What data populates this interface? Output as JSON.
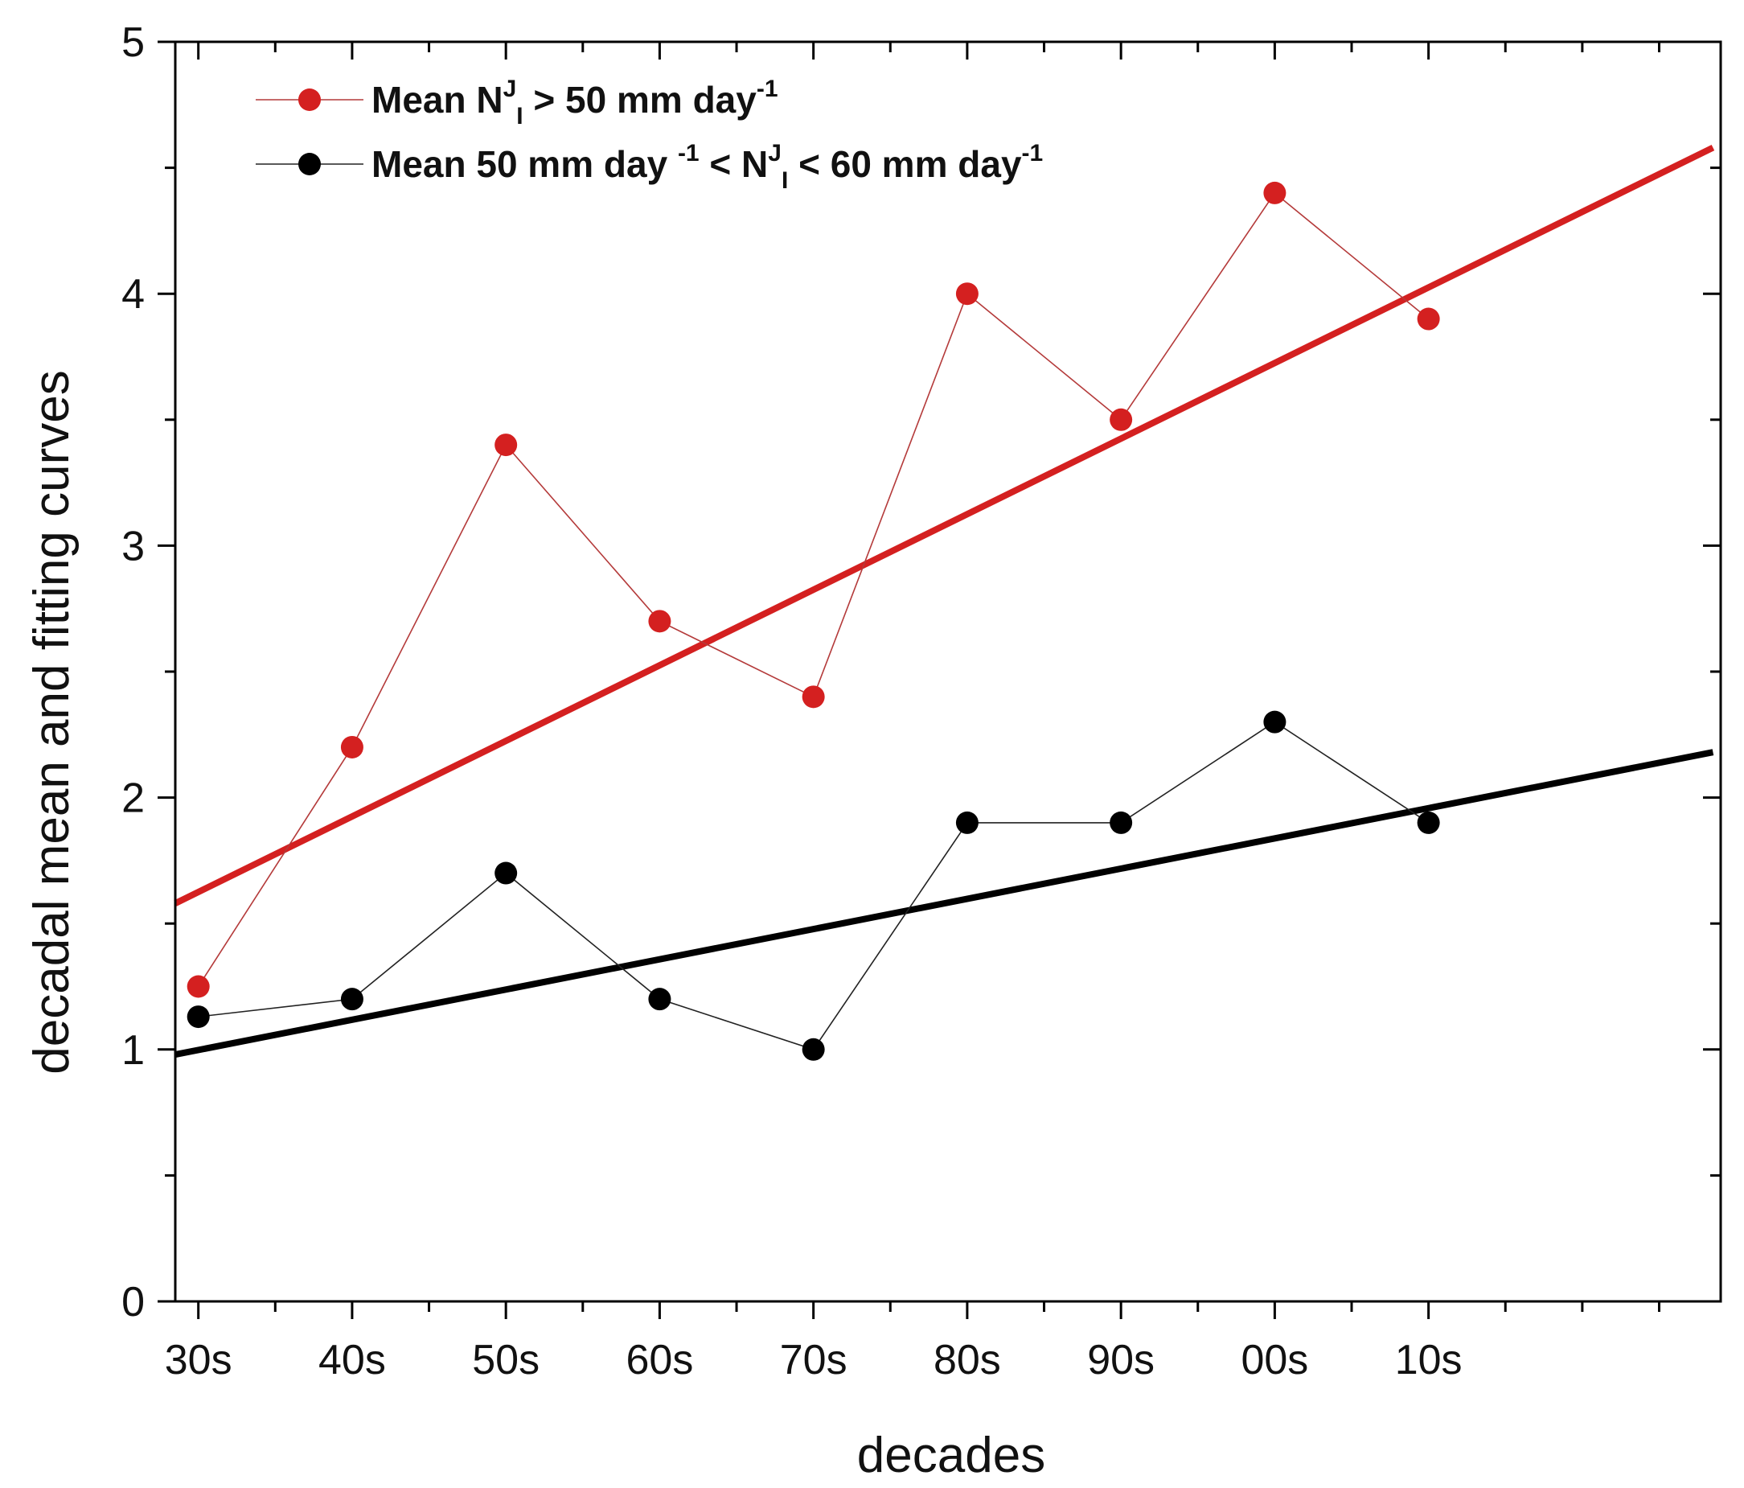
{
  "chart_data": {
    "type": "line",
    "title": "",
    "xlabel": "decades",
    "ylabel": "decadal mean and fitting curves",
    "categories": [
      "30s",
      "40s",
      "50s",
      "60s",
      "70s",
      "80s",
      "90s",
      "00s",
      "10s"
    ],
    "xlim": [
      -0.15,
      9.9
    ],
    "ylim": [
      0,
      5
    ],
    "yticks": [
      0,
      1,
      2,
      3,
      4,
      5
    ],
    "ytick_labels": [
      "0",
      "1",
      "2",
      "3",
      "4",
      "5"
    ],
    "grid": false,
    "legend_position": "top-left",
    "series": [
      {
        "name": "Mean N^J_I > 50 mm day^-1",
        "color": "#d42020",
        "values": [
          1.25,
          2.2,
          3.4,
          2.7,
          2.4,
          4.0,
          3.5,
          4.4,
          3.9
        ],
        "fit": {
          "x0": -0.15,
          "y0": 1.58,
          "x1": 9.85,
          "y1": 4.58
        },
        "legend": {
          "prefix": "Mean N",
          "sup": "J",
          "sub": "I",
          "suffix": " > 50 mm day",
          "suffix_sup": "-1",
          "tail": ""
        }
      },
      {
        "name": "Mean 50 mm day^-1 < N^J_I < 60 mm day^-1",
        "color": "#000000",
        "values": [
          1.13,
          1.2,
          1.7,
          1.2,
          1.0,
          1.9,
          1.9,
          2.3,
          1.9
        ],
        "fit": {
          "x0": -0.15,
          "y0": 0.98,
          "x1": 9.85,
          "y1": 2.18
        },
        "legend": {
          "prefix": "Mean 50 mm day ",
          "sup": "-1",
          "mid": " < N",
          "sup2": "J",
          "sub": "I",
          "suffix": " < 60 mm day",
          "suffix_sup": "-1"
        }
      }
    ]
  }
}
